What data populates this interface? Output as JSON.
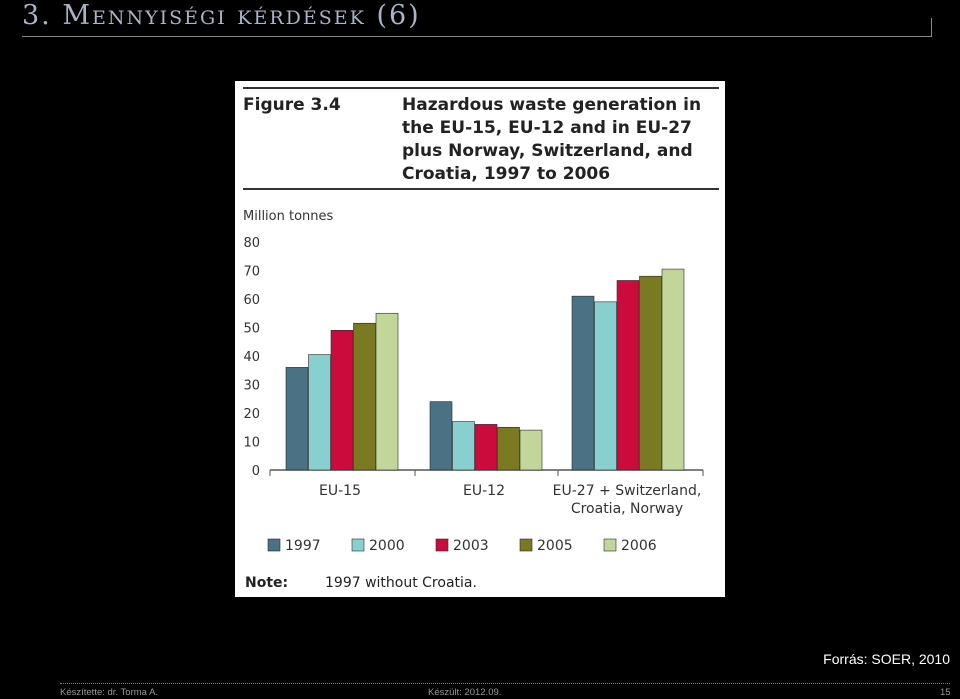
{
  "slide": {
    "title": "3. Mennyiségi kérdések (6)",
    "source": "Forrás: SOER, 2010",
    "footer_author": "Készítette: dr. Torma A.",
    "footer_date": "Készült: 2012.09.",
    "page_number": "15"
  },
  "figure": {
    "label": "Figure 3.4",
    "title_lines": [
      "Hazardous waste generation in",
      "the EU-15, EU-12 and in EU-27",
      "plus Norway, Switzerland, and",
      "Croatia, 1997 to 2006"
    ],
    "note_label": "Note:",
    "note_text": "1997 without Croatia."
  },
  "chart_data": {
    "type": "bar",
    "title": "Hazardous waste generation in the EU-15, EU-12 and in EU-27 plus Norway, Switzerland, and Croatia, 1997 to 2006",
    "ylabel": "Million tonnes",
    "xlabel": "",
    "ylim": [
      0,
      80
    ],
    "yticks": [
      "0",
      "10",
      "20",
      "30",
      "40",
      "50",
      "60",
      "70",
      "80"
    ],
    "categories": [
      [
        "EU-15"
      ],
      [
        "EU-12"
      ],
      [
        "EU-27 + Switzerland,",
        "Croatia, Norway"
      ]
    ],
    "series": [
      {
        "name": "1997",
        "color": "#4a7285",
        "values": [
          36,
          24,
          61
        ]
      },
      {
        "name": "2000",
        "color": "#88cfcf",
        "values": [
          40.5,
          17,
          59
        ]
      },
      {
        "name": "2003",
        "color": "#cc0a3c",
        "values": [
          49,
          16,
          66.5
        ]
      },
      {
        "name": "2005",
        "color": "#7a7a22",
        "values": [
          51.5,
          15,
          68
        ]
      },
      {
        "name": "2006",
        "color": "#c2d69a",
        "values": [
          55,
          14,
          70.5
        ]
      }
    ],
    "legend": "bottom",
    "grid": false
  }
}
